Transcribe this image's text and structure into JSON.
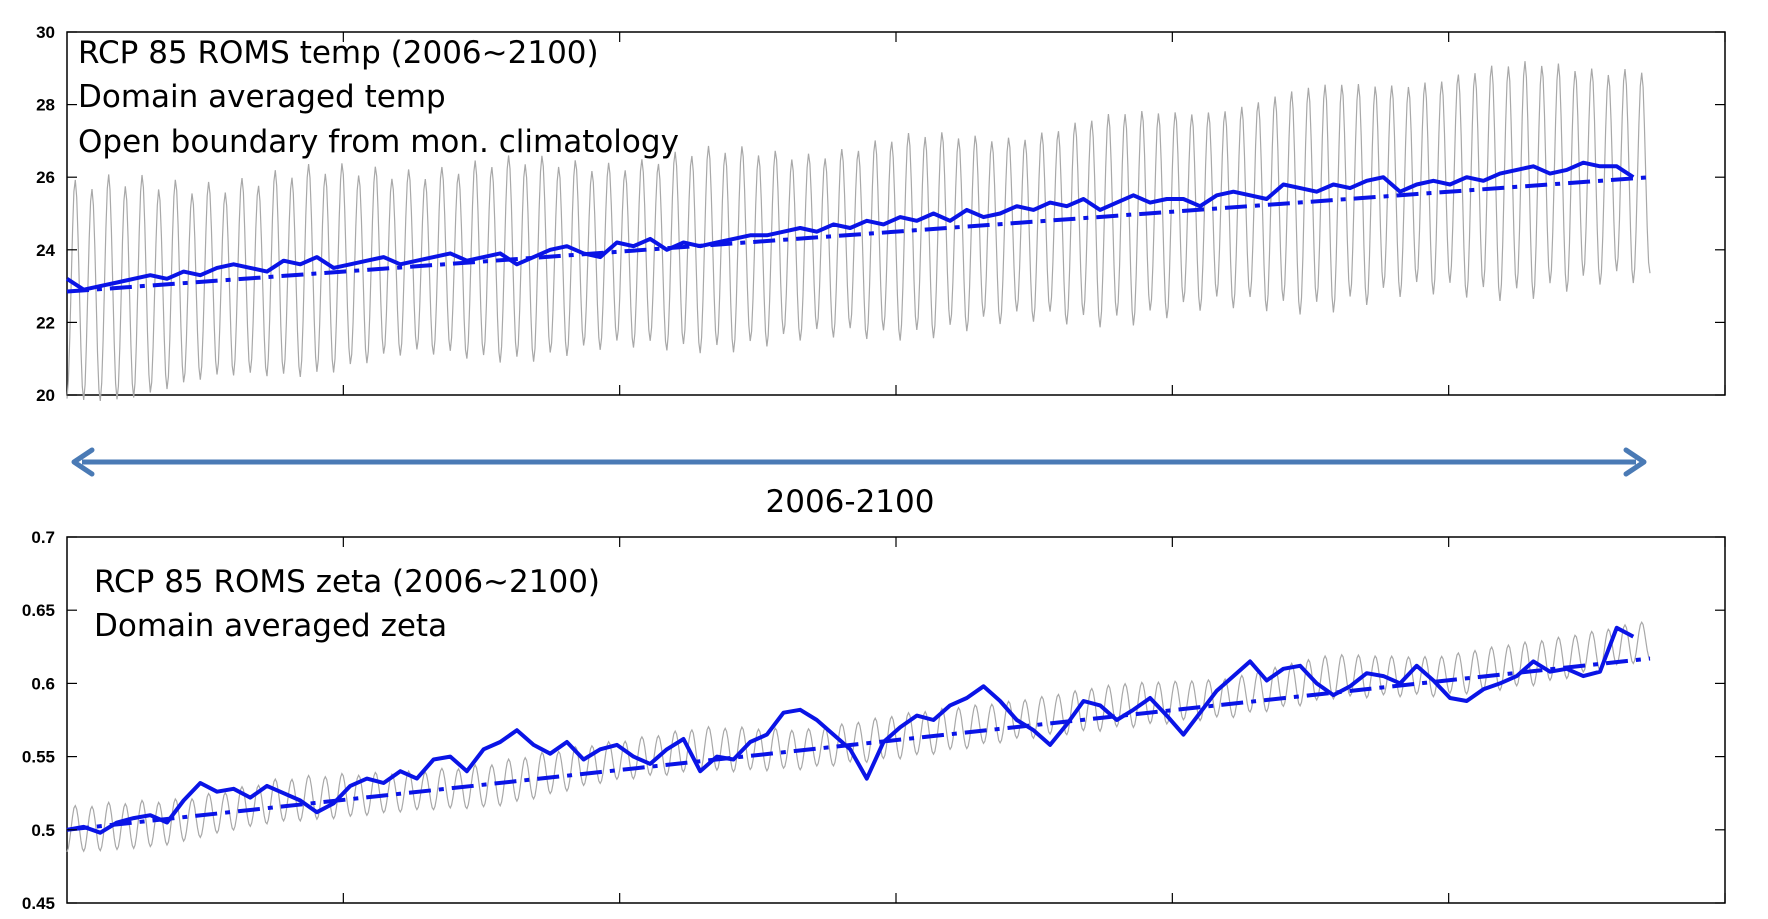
{
  "figure": {
    "span_label": "2006-2100",
    "span_arrow_color": "#4a7ab5"
  },
  "chart_data": [
    {
      "type": "line",
      "title": "",
      "annotation": [
        "RCP 85 ROMS temp (2006~2100)",
        "Domain averaged temp",
        "Open boundary from mon. climatology"
      ],
      "xlabel": "",
      "ylabel": "",
      "ylim": [
        20,
        30
      ],
      "yticks": [
        20,
        22,
        24,
        26,
        28,
        30
      ],
      "x_range": [
        0,
        1140
      ],
      "x_end_data": 1140,
      "grid": false,
      "series": [
        {
          "style": "monthly",
          "color": "#a8a8a8",
          "x_step": 1,
          "period": 12,
          "baseline": [
            22.8,
            23.0,
            23.3,
            23.6,
            23.7,
            23.8,
            24.0,
            24.1,
            24.4,
            24.6,
            24.9,
            25.2,
            25.5,
            25.8,
            26.0,
            26.1
          ],
          "amplitude": [
            2.9,
            2.8,
            2.7,
            2.6,
            2.6,
            2.6,
            2.6,
            2.6,
            2.6,
            2.6,
            2.7,
            2.8,
            2.9,
            3.0,
            3.0,
            3.0
          ]
        },
        {
          "style": "smoothed",
          "color": "#0a14e6",
          "x_step": 12,
          "values": [
            23.2,
            22.9,
            23.0,
            23.1,
            23.2,
            23.3,
            23.2,
            23.4,
            23.3,
            23.5,
            23.6,
            23.5,
            23.4,
            23.7,
            23.6,
            23.8,
            23.5,
            23.6,
            23.7,
            23.8,
            23.6,
            23.7,
            23.8,
            23.9,
            23.7,
            23.8,
            23.9,
            23.6,
            23.8,
            24.0,
            24.1,
            23.9,
            23.8,
            24.2,
            24.1,
            24.3,
            24.0,
            24.2,
            24.1,
            24.2,
            24.3,
            24.4,
            24.4,
            24.5,
            24.6,
            24.5,
            24.7,
            24.6,
            24.8,
            24.7,
            24.9,
            24.8,
            25.0,
            24.8,
            25.1,
            24.9,
            25.0,
            25.2,
            25.1,
            25.3,
            25.2,
            25.4,
            25.1,
            25.3,
            25.5,
            25.3,
            25.4,
            25.4,
            25.2,
            25.5,
            25.6,
            25.5,
            25.4,
            25.8,
            25.7,
            25.6,
            25.8,
            25.7,
            25.9,
            26.0,
            25.6,
            25.8,
            25.9,
            25.8,
            26.0,
            25.9,
            26.1,
            26.2,
            26.3,
            26.1,
            26.2,
            26.4,
            26.3,
            26.3,
            26.0
          ]
        },
        {
          "style": "trend",
          "color": "#0a14e6",
          "x": [
            0,
            1140
          ],
          "values": [
            22.85,
            26.0
          ]
        }
      ]
    },
    {
      "type": "line",
      "title": "",
      "annotation": [
        "RCP 85 ROMS zeta (2006~2100)",
        "Domain averaged zeta"
      ],
      "xlabel": "",
      "ylabel": "",
      "ylim": [
        0.45,
        0.7
      ],
      "yticks": [
        "0.45",
        "0.5",
        "0.55",
        "0.6",
        "0.65",
        "0.7"
      ],
      "x_range": [
        0,
        1140
      ],
      "x_end_data": 1140,
      "grid": false,
      "series": [
        {
          "style": "monthly",
          "color": "#a8a8a8",
          "x_step": 1,
          "period": 12,
          "baseline": [
            0.5,
            0.505,
            0.52,
            0.525,
            0.53,
            0.545,
            0.555,
            0.555,
            0.565,
            0.575,
            0.585,
            0.59,
            0.605,
            0.605,
            0.615,
            0.63
          ],
          "amplitude": [
            0.015,
            0.015,
            0.014,
            0.014,
            0.014,
            0.014,
            0.014,
            0.014,
            0.014,
            0.014,
            0.014,
            0.014,
            0.014,
            0.014,
            0.014,
            0.014
          ]
        },
        {
          "style": "smoothed",
          "color": "#0a14e6",
          "x_step": 12,
          "values": [
            0.5,
            0.502,
            0.498,
            0.505,
            0.508,
            0.51,
            0.505,
            0.52,
            0.532,
            0.526,
            0.528,
            0.522,
            0.53,
            0.525,
            0.52,
            0.512,
            0.518,
            0.53,
            0.535,
            0.532,
            0.54,
            0.535,
            0.548,
            0.55,
            0.54,
            0.555,
            0.56,
            0.568,
            0.558,
            0.552,
            0.56,
            0.548,
            0.555,
            0.558,
            0.55,
            0.545,
            0.555,
            0.562,
            0.54,
            0.55,
            0.548,
            0.56,
            0.565,
            0.58,
            0.582,
            0.575,
            0.565,
            0.555,
            0.535,
            0.56,
            0.57,
            0.578,
            0.575,
            0.585,
            0.59,
            0.598,
            0.588,
            0.575,
            0.568,
            0.558,
            0.572,
            0.588,
            0.585,
            0.575,
            0.582,
            0.59,
            0.578,
            0.565,
            0.58,
            0.595,
            0.605,
            0.615,
            0.602,
            0.61,
            0.612,
            0.6,
            0.592,
            0.598,
            0.607,
            0.605,
            0.6,
            0.612,
            0.602,
            0.59,
            0.588,
            0.596,
            0.6,
            0.605,
            0.615,
            0.608,
            0.61,
            0.605,
            0.608,
            0.638,
            0.632
          ]
        },
        {
          "style": "trend",
          "color": "#0a14e6",
          "x": [
            0,
            1140
          ],
          "values": [
            0.5,
            0.617
          ]
        }
      ]
    }
  ]
}
